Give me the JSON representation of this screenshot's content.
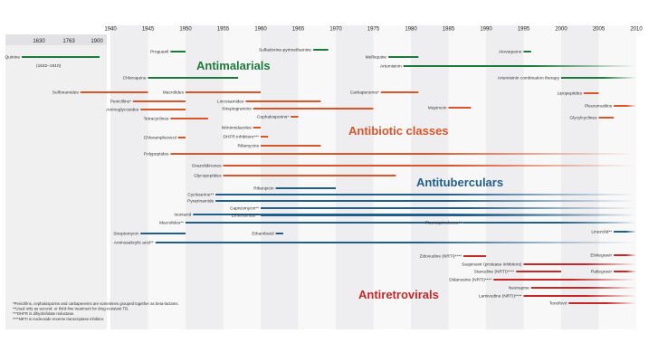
{
  "chart_data": {
    "type": "timeline",
    "early_ticks": [
      "1630",
      "1763",
      "1900"
    ],
    "year_ticks": [
      1940,
      1945,
      1950,
      1955,
      1960,
      1965,
      1970,
      1975,
      1980,
      1985,
      1990,
      1995,
      2000,
      2005,
      2010
    ],
    "categories": [
      {
        "key": "antimalarial",
        "name": "Antimalarials",
        "color": "#1e7a3c"
      },
      {
        "key": "antibiotic",
        "name": "Antibiotic classes",
        "color": "#d9562b"
      },
      {
        "key": "antitubercular",
        "name": "Antituberculars",
        "color": "#1f5f8b"
      },
      {
        "key": "antiretroviral",
        "name": "Antiretrovirals",
        "color": "#c62828"
      }
    ],
    "quinine": {
      "label": "Quinine",
      "period": "(1632–1910)",
      "start": 1632,
      "end": 1910
    },
    "drugs": [
      {
        "label": "Proguanil",
        "category": "antimalarial",
        "start": 1948,
        "end": 1950
      },
      {
        "label": "Sulfadoxine-pyrimethamine",
        "category": "antimalarial",
        "start": 1967,
        "end": 1969
      },
      {
        "label": "Mefloquine",
        "category": "antimalarial",
        "start": 1977,
        "end": 1981
      },
      {
        "label": "Atovaquone",
        "category": "antimalarial",
        "start": 1995,
        "end": 1996
      },
      {
        "label": "Artemisinin",
        "category": "antimalarial",
        "start": 1979,
        "end": 2010
      },
      {
        "label": "Chloroquine",
        "category": "antimalarial",
        "start": 1945,
        "end": 1957
      },
      {
        "label": "Artemisinin combination therapy",
        "category": "antimalarial",
        "start": 2000,
        "end": 2010
      },
      {
        "label": "Sulfonamides",
        "category": "antibiotic",
        "start": 1936,
        "end": 1945
      },
      {
        "label": "Macrolides",
        "category": "antibiotic",
        "start": 1950,
        "end": 1960
      },
      {
        "label": "Carbapenems*",
        "category": "antibiotic",
        "start": 1976,
        "end": 1981
      },
      {
        "label": "Lipopeptides",
        "category": "antibiotic",
        "start": 2003,
        "end": 2005
      },
      {
        "label": "Penicillins*",
        "category": "antibiotic",
        "start": 1943,
        "end": 1950
      },
      {
        "label": "Lincosamides",
        "category": "antibiotic",
        "start": 1958,
        "end": 1968
      },
      {
        "label": "Aminoglycosides",
        "category": "antibiotic",
        "start": 1944,
        "end": 1950
      },
      {
        "label": "Streptogramins",
        "category": "antibiotic",
        "start": 1959,
        "end": 1975
      },
      {
        "label": "Mupirocin",
        "category": "antibiotic",
        "start": 1985,
        "end": 1988
      },
      {
        "label": "Pleuromutilins",
        "category": "antibiotic",
        "start": 2007,
        "end": 2010
      },
      {
        "label": "Tetracyclines",
        "category": "antibiotic",
        "start": 1948,
        "end": 1953
      },
      {
        "label": "Cephalosporins*",
        "category": "antibiotic",
        "start": 1964,
        "end": 1965
      },
      {
        "label": "Glycylcyclines",
        "category": "antibiotic",
        "start": 2005,
        "end": 2007
      },
      {
        "label": "Nitroimidazoles",
        "category": "antibiotic",
        "start": 1959,
        "end": 1960
      },
      {
        "label": "DHFR inhibitors***",
        "category": "antibiotic",
        "start": 1960,
        "end": 1961
      },
      {
        "label": "Chloramphenicol",
        "category": "antibiotic",
        "start": 1949,
        "end": 1950
      },
      {
        "label": "Rifamycins",
        "category": "antibiotic",
        "start": 1960,
        "end": 1968
      },
      {
        "label": "Polypeptides",
        "category": "antibiotic",
        "start": 1948,
        "end": 2010
      },
      {
        "label": "Oxazolidinones",
        "category": "antibiotic",
        "start": 1955,
        "end": 2010
      },
      {
        "label": "Glycopeptides",
        "category": "antibiotic",
        "start": 1955,
        "end": 1978
      },
      {
        "label": "Rifampicin",
        "category": "antitubercular",
        "start": 1962,
        "end": 1970
      },
      {
        "label": "Cycloserine**",
        "category": "antitubercular",
        "start": 1954,
        "end": 2010
      },
      {
        "label": "Pyrazinamide",
        "category": "antitubercular",
        "start": 1954,
        "end": 2010
      },
      {
        "label": "Capreomycin**",
        "category": "antitubercular",
        "start": 1960,
        "end": 2010
      },
      {
        "label": "Isoniazid",
        "category": "antitubercular",
        "start": 1951,
        "end": 2010
      },
      {
        "label": "Ethionamide**",
        "category": "antitubercular",
        "start": 1960,
        "end": 2010
      },
      {
        "label": "Macrolides**",
        "category": "antitubercular",
        "start": 1950,
        "end": 2010
      },
      {
        "label": "Fluoroquinolones**",
        "category": "antitubercular",
        "start": 1987,
        "end": 2010
      },
      {
        "label": "Streptomycin",
        "category": "antitubercular",
        "start": 1944,
        "end": 1950
      },
      {
        "label": "Ethambutol",
        "category": "antitubercular",
        "start": 1962,
        "end": 1963
      },
      {
        "label": "Linezolid**",
        "category": "antitubercular",
        "start": 2007,
        "end": 2010
      },
      {
        "label": "Aminosalicylic acid**",
        "category": "antitubercular",
        "start": 1946,
        "end": 2010
      },
      {
        "label": "Zidovudine (NRTI)****",
        "category": "antiretroviral",
        "start": 1987,
        "end": 1990
      },
      {
        "label": "Elvitegravir",
        "category": "antiretroviral",
        "start": 2007,
        "end": 2010
      },
      {
        "label": "Saquinavir (protease inhibitors)",
        "category": "antiretroviral",
        "start": 1995,
        "end": 2010
      },
      {
        "label": "Stavudine (NRTI)****",
        "category": "antiretroviral",
        "start": 1994,
        "end": 2000
      },
      {
        "label": "Raltegravir",
        "category": "antiretroviral",
        "start": 2007,
        "end": 2010
      },
      {
        "label": "Didanosine (NRTI)****",
        "category": "antiretroviral",
        "start": 1991,
        "end": 2010
      },
      {
        "label": "Nevirapine",
        "category": "antiretroviral",
        "start": 1996,
        "end": 2010
      },
      {
        "label": "Lamivudine (NRTI)****",
        "category": "antiretroviral",
        "start": 1995,
        "end": 2010
      },
      {
        "label": "Tenofovir",
        "category": "antiretroviral",
        "start": 2001,
        "end": 2010
      }
    ],
    "footnotes": [
      "*Penicillins, cephalosporins and carbapenems are sometimes grouped together as beta-lactams.",
      "**Used only as second- or third-line treatment for drug-resistant TB.",
      "***DHFR is dihydrofolate reductase.",
      "****NRTI is nucleoside reverse transcriptase inhibitor."
    ]
  }
}
